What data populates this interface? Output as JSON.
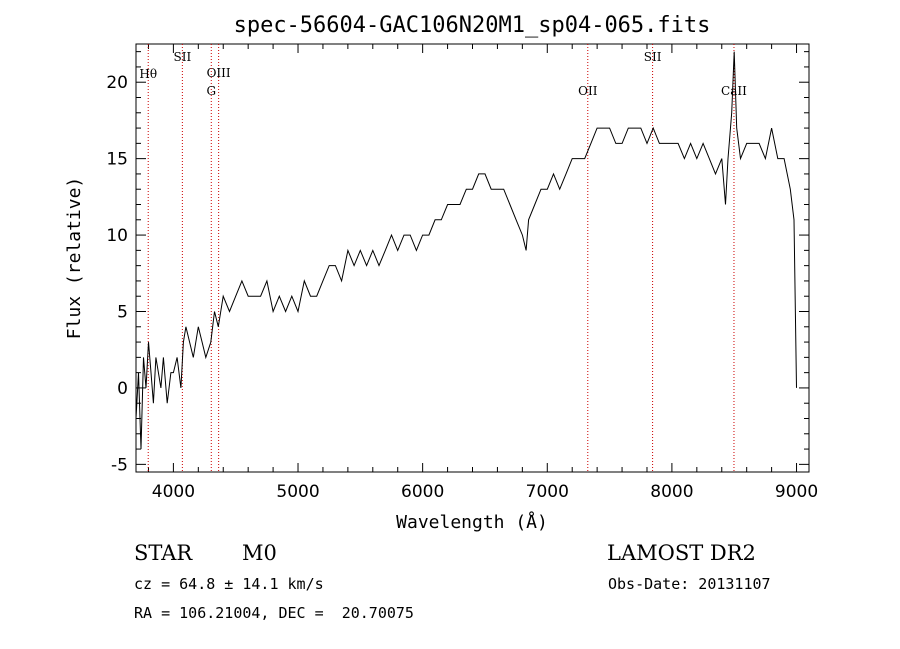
{
  "chart_data": {
    "type": "line",
    "title": "spec-56604-GAC106N20M1_sp04-065.fits",
    "xlabel": "Wavelength (Å)",
    "ylabel": "Flux (relative)",
    "xlim": [
      3700,
      9100
    ],
    "ylim": [
      -5.5,
      22.5
    ],
    "xticks": [
      4000,
      5000,
      6000,
      7000,
      8000,
      9000
    ],
    "yticks": [
      -5,
      0,
      5,
      10,
      15,
      20
    ],
    "grid": false,
    "series": [
      {
        "x": [
          3700,
          3720,
          3740,
          3760,
          3780,
          3800,
          3820,
          3840,
          3860,
          3880,
          3900,
          3920,
          3950,
          3980,
          4000,
          4030,
          4060,
          4080,
          4100,
          4130,
          4160,
          4200,
          4230,
          4260,
          4300,
          4330,
          4360,
          4400,
          4450,
          4500,
          4550,
          4600,
          4650,
          4700,
          4750,
          4800,
          4850,
          4900,
          4950,
          5000,
          5050,
          5100,
          5150,
          5200,
          5250,
          5300,
          5350,
          5400,
          5450,
          5500,
          5550,
          5600,
          5650,
          5700,
          5750,
          5800,
          5850,
          5900,
          5950,
          6000,
          6050,
          6100,
          6150,
          6200,
          6250,
          6300,
          6350,
          6400,
          6450,
          6500,
          6550,
          6600,
          6650,
          6700,
          6750,
          6800,
          6830,
          6850,
          6900,
          6950,
          7000,
          7050,
          7100,
          7150,
          7200,
          7250,
          7300,
          7350,
          7400,
          7450,
          7500,
          7550,
          7600,
          7650,
          7700,
          7750,
          7800,
          7850,
          7900,
          7950,
          8000,
          8050,
          8100,
          8150,
          8200,
          8250,
          8300,
          8350,
          8400,
          8430,
          8450,
          8480,
          8500,
          8520,
          8550,
          8600,
          8650,
          8700,
          8750,
          8800,
          8850,
          8900,
          8950,
          8980,
          9000
        ],
        "y": [
          -2,
          1,
          -4,
          2,
          0,
          3,
          1,
          -1,
          2,
          1,
          0,
          2,
          -1,
          1,
          1,
          2,
          0,
          3,
          4,
          3,
          2,
          4,
          3,
          2,
          3,
          5,
          4,
          6,
          5,
          6,
          7,
          6,
          6,
          6,
          7,
          5,
          6,
          5,
          6,
          5,
          7,
          6,
          6,
          7,
          8,
          8,
          7,
          9,
          8,
          9,
          8,
          9,
          8,
          9,
          10,
          9,
          10,
          10,
          9,
          10,
          10,
          11,
          11,
          12,
          12,
          12,
          13,
          13,
          14,
          14,
          13,
          13,
          13,
          12,
          11,
          10,
          9,
          11,
          12,
          13,
          13,
          14,
          13,
          14,
          15,
          15,
          15,
          16,
          17,
          17,
          17,
          16,
          16,
          17,
          17,
          17,
          16,
          17,
          16,
          16,
          16,
          16,
          15,
          16,
          15,
          16,
          15,
          14,
          15,
          12,
          15,
          18,
          22,
          17,
          15,
          16,
          16,
          16,
          15,
          17,
          15,
          15,
          13,
          11,
          0
        ]
      }
    ],
    "line_markers": [
      {
        "label": "Hθ",
        "x": 3798
      },
      {
        "label": "SII",
        "x": 4072
      },
      {
        "label": "OIII",
        "x": 4363
      },
      {
        "label": "G",
        "x": 4304
      },
      {
        "label": "OII",
        "x": 7325
      },
      {
        "label": "SII",
        "x": 7845
      },
      {
        "label": "CaII",
        "x": 8498
      }
    ]
  },
  "info": {
    "object_class": "STAR",
    "subclass": "M0",
    "survey": "LAMOST DR2",
    "cz": "cz = 64.8 ± 14.1 km/s",
    "obs_date": "Obs-Date: 20131107",
    "coords": "RA = 106.21004, DEC =  20.70075"
  }
}
